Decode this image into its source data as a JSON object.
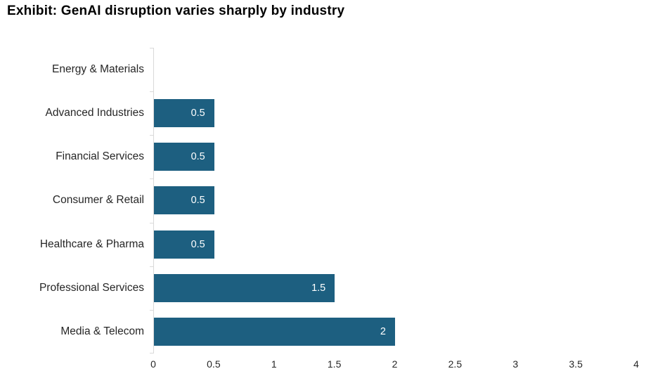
{
  "title": "Exhibit: GenAI disruption varies sharply by industry",
  "colors": {
    "bar": "#1d5f80",
    "axis": "#d9d9d9",
    "title_text": "#000000",
    "category_text": "#262626",
    "tick_text": "#262626",
    "value_text": "#ffffff",
    "background": "#ffffff"
  },
  "chart_data": {
    "type": "bar",
    "orientation": "horizontal",
    "title": "Exhibit: GenAI disruption varies sharply by industry",
    "categories": [
      "Energy & Materials",
      "Advanced Industries",
      "Financial Services",
      "Consumer & Retail",
      "Healthcare & Pharma",
      "Professional Services",
      "Media & Telecom"
    ],
    "values": [
      0,
      0.5,
      0.5,
      0.5,
      0.5,
      1.5,
      2
    ],
    "value_labels": [
      "",
      "0.5",
      "0.5",
      "0.5",
      "0.5",
      "1.5",
      "2"
    ],
    "x_ticks": [
      "0",
      "0.5",
      "1",
      "1.5",
      "2",
      "2.5",
      "3",
      "3.5",
      "4"
    ],
    "xlim": [
      0,
      4
    ],
    "xlabel": "",
    "ylabel": "",
    "grid": false,
    "legend": false,
    "value_labels_position": "inside-end"
  }
}
